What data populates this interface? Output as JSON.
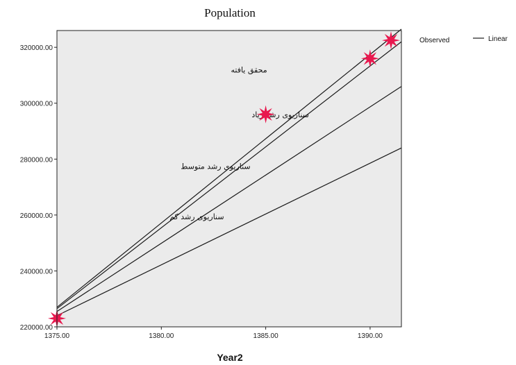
{
  "chart_data": {
    "type": "line",
    "title": "Population",
    "xlabel": "Year2",
    "ylabel": "",
    "xlim": [
      1375,
      1391.5
    ],
    "ylim": [
      220000,
      326000
    ],
    "x_ticks": [
      1375,
      1380,
      1385,
      1390
    ],
    "x_tick_labels": [
      "1375.00",
      "1380.00",
      "1385.00",
      "1390.00"
    ],
    "y_ticks": [
      220000,
      240000,
      260000,
      280000,
      300000,
      320000
    ],
    "y_tick_labels": [
      "220000.00",
      "240000.00",
      "260000.00",
      "280000.00",
      "300000.00",
      "320000.00"
    ],
    "observed": {
      "name": "Observed",
      "marker": "star",
      "color": "#e8184e",
      "points": [
        {
          "x": 1375,
          "y": 223000
        },
        {
          "x": 1385,
          "y": 296000
        },
        {
          "x": 1390,
          "y": 316000
        },
        {
          "x": 1391,
          "y": 322500
        }
      ]
    },
    "lines": [
      {
        "label": "محقق یافته",
        "x": [
          1375,
          1391.5
        ],
        "y": [
          226500,
          322000
        ],
        "label_x": 1384.2,
        "label_y": 311000
      },
      {
        "label": "سناریوی رشد زیاد",
        "x": [
          1375,
          1391.5
        ],
        "y": [
          227000,
          326500
        ],
        "label_x": 1385.7,
        "label_y": 295000
      },
      {
        "label": "سناریوی رشد متوسط",
        "x": [
          1375,
          1391.5
        ],
        "y": [
          225500,
          306000
        ],
        "label_x": 1382.6,
        "label_y": 276500
      },
      {
        "label": "سناریوی رشد کم",
        "x": [
          1375,
          1391.5
        ],
        "y": [
          224000,
          284000
        ],
        "label_x": 1381.7,
        "label_y": 258500
      }
    ],
    "legend": {
      "observed": "Observed",
      "linear": "Linear",
      "placement": "top-right outside"
    },
    "colors": {
      "plot_background": "#ebebeb",
      "line": "#1a1a1a",
      "marker": "#e8184e"
    },
    "grid": false
  }
}
